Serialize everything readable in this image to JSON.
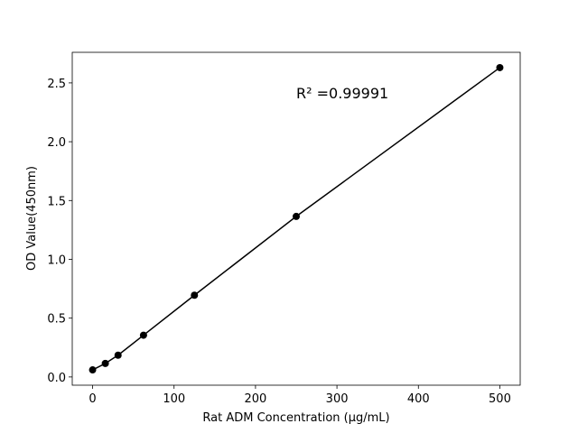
{
  "chart_data": {
    "type": "line",
    "x_label": "Rat ADM Concentration (μg/mL)",
    "y_label": "OD Value(450nm)",
    "annotation": "R² =0.99991",
    "x": [
      0,
      15.6,
      31.25,
      62.5,
      125,
      250,
      500
    ],
    "series": [
      {
        "color": "#000000",
        "values": [
          0.06,
          0.115,
          0.185,
          0.355,
          0.695,
          1.365,
          2.63
        ]
      }
    ],
    "xlim": [
      -25,
      525
    ],
    "xticks": [
      0,
      100,
      200,
      300,
      400,
      500
    ],
    "ylim": [
      -0.07,
      2.76
    ],
    "yticks": [
      {
        "value": 0,
        "label": "0.0"
      },
      0.5,
      {
        "value": 1,
        "label": "1.0"
      },
      1.5,
      {
        "value": 2,
        "label": "2.0"
      },
      2.5
    ],
    "grid": false
  }
}
